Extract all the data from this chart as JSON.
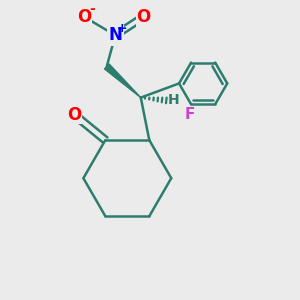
{
  "background_color": "#ebebeb",
  "bond_color": "#2d7d6e",
  "bond_width": 1.8,
  "atom_colors": {
    "O_ketone": "#ff0000",
    "O_nitro1": "#ff0000",
    "O_nitro2": "#ff0000",
    "N": "#0000ff",
    "F": "#cc44cc",
    "H": "#2d7d6e",
    "C": "#2d7d6e"
  },
  "figsize": [
    3.0,
    3.0
  ],
  "dpi": 100,
  "xlim": [
    0,
    10
  ],
  "ylim": [
    0,
    10
  ]
}
